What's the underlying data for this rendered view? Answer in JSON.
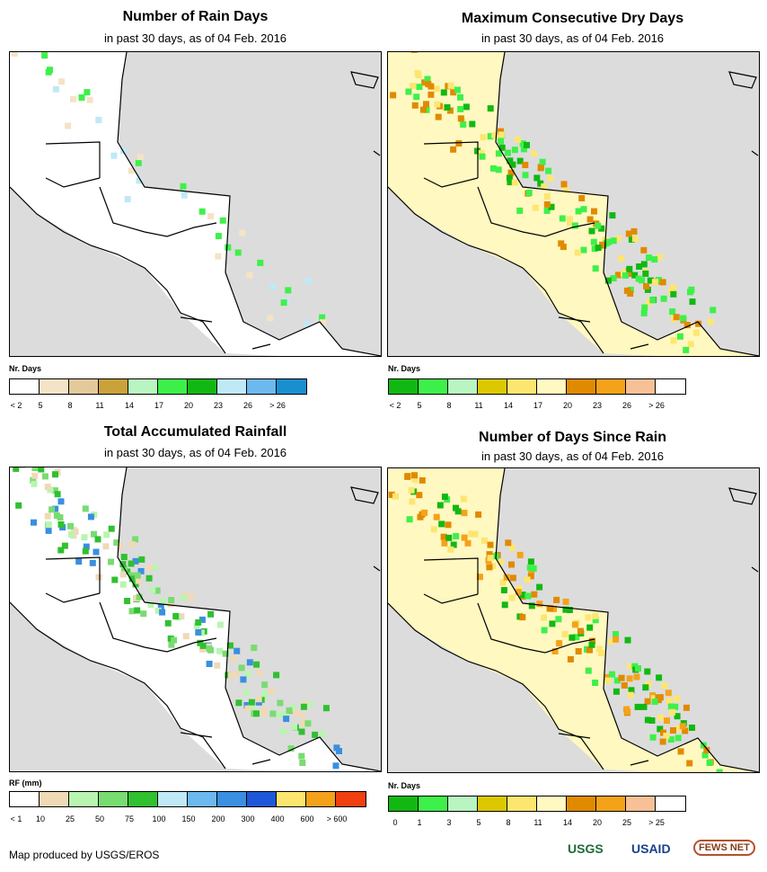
{
  "panels": [
    {
      "title": "Number of Rain Days",
      "subtitle": "in past 30 days, as of 04 Feb. 2016",
      "legend_title": "Nr. Days",
      "legend_labels": [
        "< 2",
        "5",
        "8",
        "11",
        "14",
        "17",
        "20",
        "23",
        "26",
        "> 26"
      ],
      "legend_colors": [
        "#ffffff",
        "#f5e3c7",
        "#e3c99b",
        "#c9a23a",
        "#b8f5c0",
        "#3ef04a",
        "#12b812",
        "#bfe9f7",
        "#6cb9f0",
        "#1a8fd0"
      ],
      "map_fill": "#ffffff"
    },
    {
      "title": "Maximum Consecutive Dry Days",
      "subtitle": "in past 30 days, as of 04 Feb. 2016",
      "legend_title": "Nr. Days",
      "legend_labels": [
        "< 2",
        "5",
        "8",
        "11",
        "14",
        "17",
        "20",
        "23",
        "26",
        "> 26"
      ],
      "legend_colors": [
        "#12b812",
        "#3ef04a",
        "#b8f5c0",
        "#dcc800",
        "#fde670",
        "#fff8c0",
        "#e08a00",
        "#f4a21a",
        "#f7c096",
        "#ffffff"
      ],
      "map_fill": "#fff8c0"
    },
    {
      "title": "Total Accumulated Rainfall",
      "subtitle": "in past 30 days, as of 04 Feb. 2016",
      "legend_title": "RF (mm)",
      "legend_labels": [
        "< 1",
        "10",
        "25",
        "50",
        "75",
        "100",
        "150",
        "200",
        "300",
        "400",
        "600",
        "> 600"
      ],
      "legend_colors": [
        "#ffffff",
        "#efd9b6",
        "#b8f5b0",
        "#78dc70",
        "#30c030",
        "#bfe9f7",
        "#6cb9f0",
        "#3a8fe0",
        "#1e58d8",
        "#fde670",
        "#f4a21a",
        "#f04010"
      ],
      "map_fill": "#ffffff"
    },
    {
      "title": "Number of Days Since Rain",
      "subtitle": "in past 30 days, as of 04 Feb. 2016",
      "legend_title": "Nr. Days",
      "legend_labels": [
        "0",
        "1",
        "3",
        "5",
        "8",
        "11",
        "14",
        "20",
        "25",
        "> 25"
      ],
      "legend_colors": [
        "#12b812",
        "#3ef04a",
        "#b8f5c0",
        "#dcc800",
        "#fde670",
        "#fff8c0",
        "#e08a00",
        "#f4a21a",
        "#f7c096",
        "#ffffff"
      ],
      "map_fill": "#fff8c0"
    }
  ],
  "footer": {
    "credit": "Map produced by USGS/EROS",
    "logos": [
      "USGS",
      "USAID",
      "FEWS NET"
    ]
  },
  "colors": {
    "ocean": "#dcdcdc",
    "border": "#000000"
  }
}
